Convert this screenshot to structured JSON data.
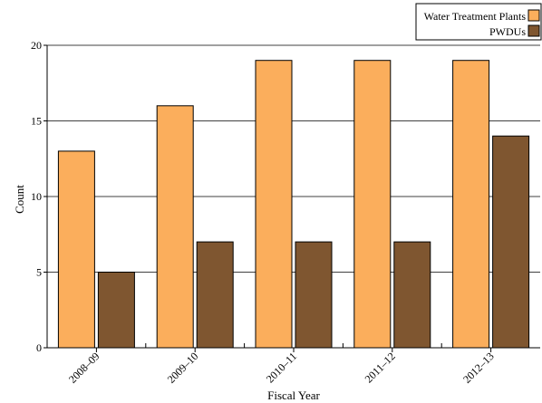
{
  "chart_data": {
    "type": "bar",
    "categories": [
      "2008–09",
      "2009–10",
      "2010–11",
      "2011–12",
      "2012–13"
    ],
    "series": [
      {
        "name": "Water Treatment Plants",
        "values": [
          13,
          16,
          19,
          19,
          19
        ],
        "color": "#FBAE5C"
      },
      {
        "name": "PWDUs",
        "values": [
          5,
          7,
          7,
          7,
          14
        ],
        "color": "#7F5630"
      }
    ],
    "xlabel": "Fiscal Year",
    "ylabel": "Count",
    "ylim": [
      0,
      20
    ],
    "yticks": [
      0,
      5,
      10,
      15,
      20
    ],
    "grid": true,
    "legend_position": "top-right"
  }
}
